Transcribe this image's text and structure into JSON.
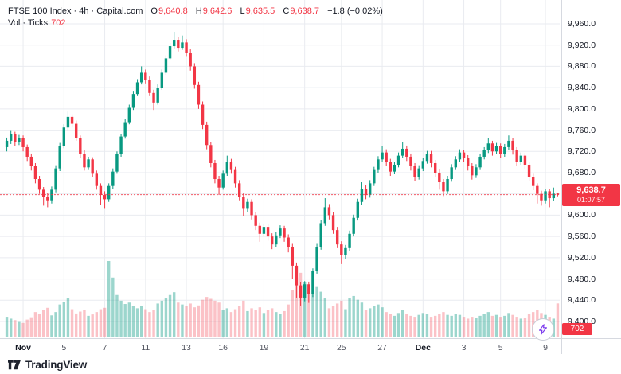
{
  "header": {
    "title": "FTSE 100 Index · 4h · Capital.com",
    "ohlc": {
      "o_label": "O",
      "o": "9,640.8",
      "h_label": "H",
      "h": "9,642.6",
      "l_label": "L",
      "l": "9,635.5",
      "c_label": "C",
      "c": "9,638.7",
      "change": "−1.8 (−0.02%)"
    },
    "indicator": {
      "label": "Vol · Ticks",
      "value": "702"
    }
  },
  "price_axis": {
    "badge": {
      "price": "9,638.7",
      "countdown": "01:07:57"
    },
    "volume_badge": "702"
  },
  "footer": {
    "brand": "TradingView"
  },
  "icons": {
    "bolt": "lightning-bolt"
  },
  "colors": {
    "up": "#089981",
    "down": "#f23645",
    "vol_up": "rgba(8,153,129,0.40)",
    "vol_down": "rgba(242,54,69,0.30)",
    "grid": "#e9ebf0",
    "axis_border": "#d6d9e0",
    "last_price_line": "#f23645",
    "badge_bg": "#f23645",
    "bolt": "#7c3aed"
  },
  "chart_data": {
    "type": "candlestick",
    "title": "FTSE 100 Index 4h (Capital.com)",
    "legend": [
      "price",
      "Vol · Ticks"
    ],
    "last_price": 9638.7,
    "y_ticks": [
      9400,
      9440,
      9480,
      9520,
      9560,
      9600,
      9640,
      9680,
      9720,
      9760,
      9800,
      9840,
      9880,
      9920,
      9960
    ],
    "x_ticks": [
      {
        "i": 4,
        "label": "Nov"
      },
      {
        "i": 14,
        "label": "5"
      },
      {
        "i": 24,
        "label": "7"
      },
      {
        "i": 34,
        "label": "11"
      },
      {
        "i": 44,
        "label": "13"
      },
      {
        "i": 53,
        "label": "16"
      },
      {
        "i": 63,
        "label": "19"
      },
      {
        "i": 73,
        "label": "21"
      },
      {
        "i": 82,
        "label": "25"
      },
      {
        "i": 92,
        "label": "27"
      },
      {
        "i": 102,
        "label": "Dec"
      },
      {
        "i": 112,
        "label": "3"
      },
      {
        "i": 121,
        "label": "5"
      },
      {
        "i": 132,
        "label": "9"
      }
    ],
    "candles": [
      [
        9728,
        9746,
        9720,
        9740
      ],
      [
        9740,
        9760,
        9734,
        9752
      ],
      [
        9752,
        9757,
        9730,
        9738
      ],
      [
        9738,
        9751,
        9732,
        9745
      ],
      [
        9745,
        9750,
        9720,
        9728
      ],
      [
        9728,
        9733,
        9702,
        9710
      ],
      [
        9710,
        9716,
        9684,
        9692
      ],
      [
        9692,
        9698,
        9660,
        9668
      ],
      [
        9668,
        9674,
        9640,
        9648
      ],
      [
        9648,
        9653,
        9618,
        9635
      ],
      [
        9635,
        9642,
        9615,
        9628
      ],
      [
        9628,
        9654,
        9622,
        9648
      ],
      [
        9648,
        9694,
        9643,
        9688
      ],
      [
        9688,
        9736,
        9683,
        9730
      ],
      [
        9730,
        9771,
        9726,
        9765
      ],
      [
        9765,
        9795,
        9760,
        9785
      ],
      [
        9785,
        9790,
        9765,
        9772
      ],
      [
        9772,
        9778,
        9740,
        9745
      ],
      [
        9745,
        9750,
        9708,
        9715
      ],
      [
        9715,
        9722,
        9684,
        9690
      ],
      [
        9690,
        9710,
        9685,
        9705
      ],
      [
        9705,
        9709,
        9672,
        9678
      ],
      [
        9678,
        9684,
        9648,
        9655
      ],
      [
        9655,
        9660,
        9620,
        9638
      ],
      [
        9638,
        9645,
        9612,
        9630
      ],
      [
        9630,
        9660,
        9625,
        9655
      ],
      [
        9655,
        9688,
        9650,
        9682
      ],
      [
        9682,
        9720,
        9678,
        9715
      ],
      [
        9715,
        9753,
        9710,
        9748
      ],
      [
        9748,
        9781,
        9744,
        9775
      ],
      [
        9775,
        9808,
        9771,
        9802
      ],
      [
        9802,
        9834,
        9798,
        9828
      ],
      [
        9828,
        9856,
        9824,
        9850
      ],
      [
        9850,
        9880,
        9846,
        9868
      ],
      [
        9868,
        9874,
        9848,
        9855
      ],
      [
        9855,
        9861,
        9824,
        9830
      ],
      [
        9830,
        9836,
        9798,
        9812
      ],
      [
        9812,
        9846,
        9808,
        9840
      ],
      [
        9840,
        9874,
        9836,
        9868
      ],
      [
        9868,
        9901,
        9864,
        9895
      ],
      [
        9895,
        9924,
        9891,
        9918
      ],
      [
        9918,
        9945,
        9914,
        9930
      ],
      [
        9930,
        9936,
        9908,
        9915
      ],
      [
        9915,
        9938,
        9911,
        9925
      ],
      [
        9925,
        9931,
        9898,
        9905
      ],
      [
        9905,
        9912,
        9872,
        9880
      ],
      [
        9880,
        9886,
        9838,
        9845
      ],
      [
        9845,
        9851,
        9800,
        9808
      ],
      [
        9808,
        9814,
        9762,
        9770
      ],
      [
        9770,
        9776,
        9724,
        9732
      ],
      [
        9732,
        9738,
        9690,
        9698
      ],
      [
        9698,
        9704,
        9660,
        9668
      ],
      [
        9668,
        9674,
        9638,
        9652
      ],
      [
        9652,
        9684,
        9648,
        9678
      ],
      [
        9678,
        9712,
        9674,
        9700
      ],
      [
        9700,
        9706,
        9678,
        9685
      ],
      [
        9685,
        9691,
        9652,
        9660
      ],
      [
        9660,
        9666,
        9628,
        9635
      ],
      [
        9635,
        9641,
        9598,
        9612
      ],
      [
        9612,
        9631,
        9606,
        9625
      ],
      [
        9625,
        9630,
        9592,
        9600
      ],
      [
        9600,
        9606,
        9572,
        9580
      ],
      [
        9580,
        9586,
        9550,
        9565
      ],
      [
        9565,
        9584,
        9560,
        9578
      ],
      [
        9578,
        9583,
        9552,
        9560
      ],
      [
        9560,
        9566,
        9536,
        9545
      ],
      [
        9545,
        9568,
        9540,
        9562
      ],
      [
        9562,
        9581,
        9557,
        9575
      ],
      [
        9575,
        9580,
        9550,
        9558
      ],
      [
        9558,
        9564,
        9530,
        9540
      ],
      [
        9540,
        9546,
        9480,
        9505
      ],
      [
        9505,
        9511,
        9445,
        9468
      ],
      [
        9468,
        9474,
        9430,
        9445
      ],
      [
        9445,
        9476,
        9438,
        9470
      ],
      [
        9470,
        9475,
        9435,
        9452
      ],
      [
        9452,
        9500,
        9446,
        9495
      ],
      [
        9495,
        9546,
        9490,
        9540
      ],
      [
        9540,
        9591,
        9535,
        9585
      ],
      [
        9585,
        9632,
        9580,
        9615
      ],
      [
        9615,
        9621,
        9592,
        9600
      ],
      [
        9600,
        9606,
        9565,
        9572
      ],
      [
        9572,
        9578,
        9538,
        9545
      ],
      [
        9545,
        9551,
        9508,
        9525
      ],
      [
        9525,
        9544,
        9518,
        9538
      ],
      [
        9538,
        9571,
        9533,
        9565
      ],
      [
        9565,
        9601,
        9560,
        9595
      ],
      [
        9595,
        9631,
        9590,
        9625
      ],
      [
        9625,
        9662,
        9620,
        9650
      ],
      [
        9650,
        9656,
        9630,
        9638
      ],
      [
        9638,
        9666,
        9633,
        9660
      ],
      [
        9660,
        9691,
        9655,
        9685
      ],
      [
        9685,
        9711,
        9680,
        9705
      ],
      [
        9705,
        9730,
        9700,
        9718
      ],
      [
        9718,
        9724,
        9692,
        9700
      ],
      [
        9700,
        9706,
        9674,
        9682
      ],
      [
        9682,
        9701,
        9677,
        9695
      ],
      [
        9695,
        9718,
        9690,
        9712
      ],
      [
        9712,
        9738,
        9707,
        9725
      ],
      [
        9725,
        9731,
        9702,
        9710
      ],
      [
        9710,
        9716,
        9684,
        9692
      ],
      [
        9692,
        9698,
        9664,
        9672
      ],
      [
        9672,
        9694,
        9667,
        9688
      ],
      [
        9688,
        9708,
        9683,
        9702
      ],
      [
        9702,
        9721,
        9697,
        9715
      ],
      [
        9715,
        9721,
        9690,
        9698
      ],
      [
        9698,
        9704,
        9672,
        9680
      ],
      [
        9680,
        9686,
        9648,
        9662
      ],
      [
        9662,
        9668,
        9636,
        9645
      ],
      [
        9645,
        9674,
        9640,
        9668
      ],
      [
        9668,
        9696,
        9663,
        9690
      ],
      [
        9690,
        9711,
        9685,
        9705
      ],
      [
        9705,
        9724,
        9700,
        9718
      ],
      [
        9718,
        9723,
        9700,
        9708
      ],
      [
        9708,
        9713,
        9684,
        9692
      ],
      [
        9692,
        9698,
        9667,
        9675
      ],
      [
        9675,
        9696,
        9670,
        9690
      ],
      [
        9690,
        9716,
        9685,
        9710
      ],
      [
        9710,
        9728,
        9705,
        9722
      ],
      [
        9722,
        9745,
        9717,
        9735
      ],
      [
        9735,
        9740,
        9712,
        9720
      ],
      [
        9720,
        9736,
        9715,
        9730
      ],
      [
        9730,
        9735,
        9707,
        9715
      ],
      [
        9715,
        9734,
        9710,
        9728
      ],
      [
        9728,
        9750,
        9723,
        9740
      ],
      [
        9740,
        9745,
        9714,
        9722
      ],
      [
        9722,
        9728,
        9692,
        9700
      ],
      [
        9700,
        9718,
        9695,
        9712
      ],
      [
        9712,
        9717,
        9687,
        9695
      ],
      [
        9695,
        9700,
        9664,
        9672
      ],
      [
        9672,
        9678,
        9647,
        9655
      ],
      [
        9655,
        9660,
        9622,
        9640
      ],
      [
        9640,
        9646,
        9618,
        9628
      ],
      [
        9628,
        9650,
        9622,
        9645
      ],
      [
        9645,
        9650,
        9615,
        9632
      ],
      [
        9632,
        9652,
        9627,
        9640.5
      ],
      [
        9640.8,
        9642.6,
        9635.5,
        9638.7
      ]
    ],
    "volumes": [
      420,
      380,
      350,
      310,
      290,
      360,
      410,
      520,
      480,
      560,
      610,
      450,
      520,
      680,
      740,
      820,
      580,
      490,
      530,
      560,
      440,
      470,
      520,
      580,
      610,
      1600,
      1250,
      880,
      760,
      690,
      720,
      650,
      600,
      640,
      580,
      520,
      560,
      700,
      760,
      820,
      880,
      940,
      720,
      680,
      640,
      700,
      620,
      660,
      780,
      840,
      800,
      760,
      720,
      560,
      600,
      520,
      580,
      640,
      760,
      540,
      600,
      560,
      620,
      500,
      560,
      600,
      520,
      480,
      540,
      680,
      980,
      1250,
      1350,
      1150,
      1020,
      900,
      1050,
      950,
      820,
      600,
      640,
      700,
      760,
      580,
      820,
      860,
      780,
      720,
      560,
      600,
      640,
      680,
      620,
      520,
      480,
      440,
      500,
      560,
      480,
      440,
      420,
      460,
      500,
      480,
      420,
      440,
      480,
      520,
      460,
      440,
      480,
      460,
      420,
      380,
      420,
      400,
      440,
      480,
      520,
      440,
      460,
      420,
      440,
      500,
      460,
      420,
      380,
      400,
      480,
      520,
      560,
      500,
      460,
      420,
      380,
      702
    ]
  }
}
